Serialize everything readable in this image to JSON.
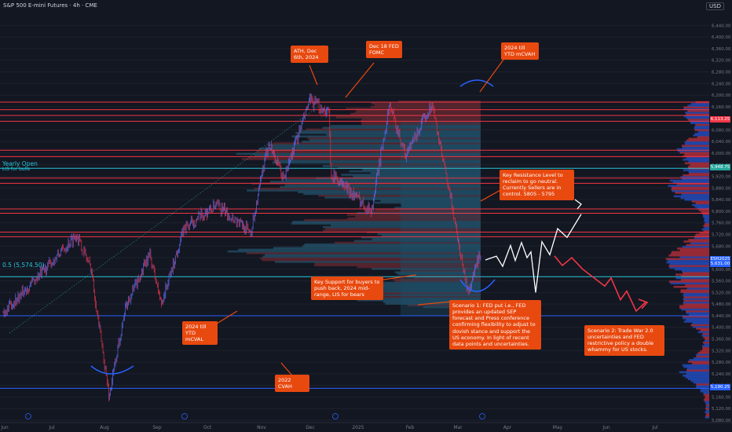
{
  "header": {
    "title": "S&P 500 E-mini Futures · 4h · CME",
    "currency": "USD"
  },
  "chart_data": {
    "type": "candlestick",
    "title": "S&P 500 E-mini Futures · 4h · CME",
    "ylim": [
      5080,
      6480
    ],
    "y_ticks": [
      6440,
      6400,
      6360,
      6320,
      6280,
      6240,
      6200,
      6160,
      6120,
      6080,
      6040,
      6000,
      5960,
      5920,
      5880,
      5840,
      5800,
      5760,
      5720,
      5680,
      5640,
      5600,
      5560,
      5520,
      5480,
      5440,
      5400,
      5360,
      5320,
      5280,
      5240,
      5200,
      5160,
      5120,
      5080
    ],
    "x_ticks": [
      "Jun",
      "Jul",
      "Aug",
      "Sep",
      "Oct",
      "Nov",
      "Dec",
      "2025",
      "Feb",
      "Mar",
      "Apr",
      "May",
      "Jun",
      "Jul"
    ],
    "price_path": [
      {
        "date": "2024-06-01",
        "price": 5450
      },
      {
        "date": "2024-06-20",
        "price": 5560
      },
      {
        "date": "2024-07-05",
        "price": 5650
      },
      {
        "date": "2024-07-16",
        "price": 5720
      },
      {
        "date": "2024-07-25",
        "price": 5600
      },
      {
        "date": "2024-08-05",
        "price": 5160
      },
      {
        "date": "2024-08-15",
        "price": 5470
      },
      {
        "date": "2024-08-30",
        "price": 5650
      },
      {
        "date": "2024-09-06",
        "price": 5480
      },
      {
        "date": "2024-09-20",
        "price": 5740
      },
      {
        "date": "2024-10-10",
        "price": 5820
      },
      {
        "date": "2024-10-31",
        "price": 5730
      },
      {
        "date": "2024-11-11",
        "price": 6040
      },
      {
        "date": "2024-11-20",
        "price": 5910
      },
      {
        "date": "2024-12-06",
        "price": 6180
      },
      {
        "date": "2024-12-18",
        "price": 6140
      },
      {
        "date": "2024-12-19",
        "price": 5930
      },
      {
        "date": "2025-01-13",
        "price": 5800
      },
      {
        "date": "2025-01-24",
        "price": 6170
      },
      {
        "date": "2025-02-03",
        "price": 5990
      },
      {
        "date": "2025-02-19",
        "price": 6170
      },
      {
        "date": "2025-03-04",
        "price": 5800
      },
      {
        "date": "2025-03-13",
        "price": 5520
      },
      {
        "date": "2025-03-20",
        "price": 5640
      },
      {
        "date": "2025-03-21",
        "price": 5631
      }
    ],
    "horizontal_levels": [
      {
        "price": 6176,
        "color": "#f23645"
      },
      {
        "price": 6150,
        "color": "#f23645"
      },
      {
        "price": 6130,
        "color": "#f23645"
      },
      {
        "price": 6110,
        "color": "#f23645"
      },
      {
        "price": 6010,
        "color": "#f23645"
      },
      {
        "price": 5988,
        "color": "#f23645"
      },
      {
        "price": 5914,
        "color": "#f23645"
      },
      {
        "price": 5896,
        "color": "#f23645"
      },
      {
        "price": 5808,
        "color": "#f23645"
      },
      {
        "price": 5793,
        "color": "#f23645"
      },
      {
        "price": 5728,
        "color": "#f23645"
      },
      {
        "price": 5712,
        "color": "#f23645"
      },
      {
        "price": 5948,
        "color": "#26c6da"
      },
      {
        "price": 5574.5,
        "color": "#26c6da"
      },
      {
        "price": 5440,
        "color": "#2962ff"
      },
      {
        "price": 5190,
        "color": "#2962ff"
      }
    ],
    "scenario_1_path": [
      5632,
      5645,
      5610,
      5682,
      5630,
      5692,
      5640,
      5660,
      5520,
      5695,
      5650,
      5740,
      5710,
      5790
    ],
    "scenario_2_path": [
      5646,
      5613,
      5640,
      5600,
      5542,
      5570,
      5495,
      5525,
      5456,
      5487
    ],
    "price_badges": [
      {
        "price": 6113.25,
        "text": "6,113.25",
        "color": "#f23645"
      },
      {
        "price": 5948.75,
        "text": "5,948.75",
        "color": "#26a69a"
      },
      {
        "price": 5631.0,
        "text": "ESH2025 5,631.00",
        "color": "#2962ff"
      },
      {
        "price": 5190.25,
        "text": "5,190.25",
        "color": "#2962ff"
      }
    ]
  },
  "annotations": {
    "ath": "ATH, Dec 6th, 2024",
    "fomc": "Dec 18 FED FOMC",
    "vah_2024": "2024 till YTD mCVAH",
    "key_resistance": "Key Resistance Level to reclaim to go neutral. Currently Sellers are in control. 5805 - 5795",
    "key_support": "Key Support for buyers to push back, 2024 mid-range, LIS for bears",
    "scenario_1": "Scenario 1: FED put i.e., FED provides an updated SEP forecast and Press conference confirming flexibility to adjust to dovish stance and support the US economy. In light of recent data points and uncertainties.",
    "scenario_2": "Scenario 2: Trade War 2.0 uncertainties and FED restrictive policy a double whammy for US stocks.",
    "val_2024": "2024 till YTD mCVAL",
    "cvah_2022": "2022 CVAH",
    "yearly_open": "Yearly Open",
    "lis_for_bulls": "LIS for bulls",
    "fib_label": "0.5 (5,574.50)"
  }
}
